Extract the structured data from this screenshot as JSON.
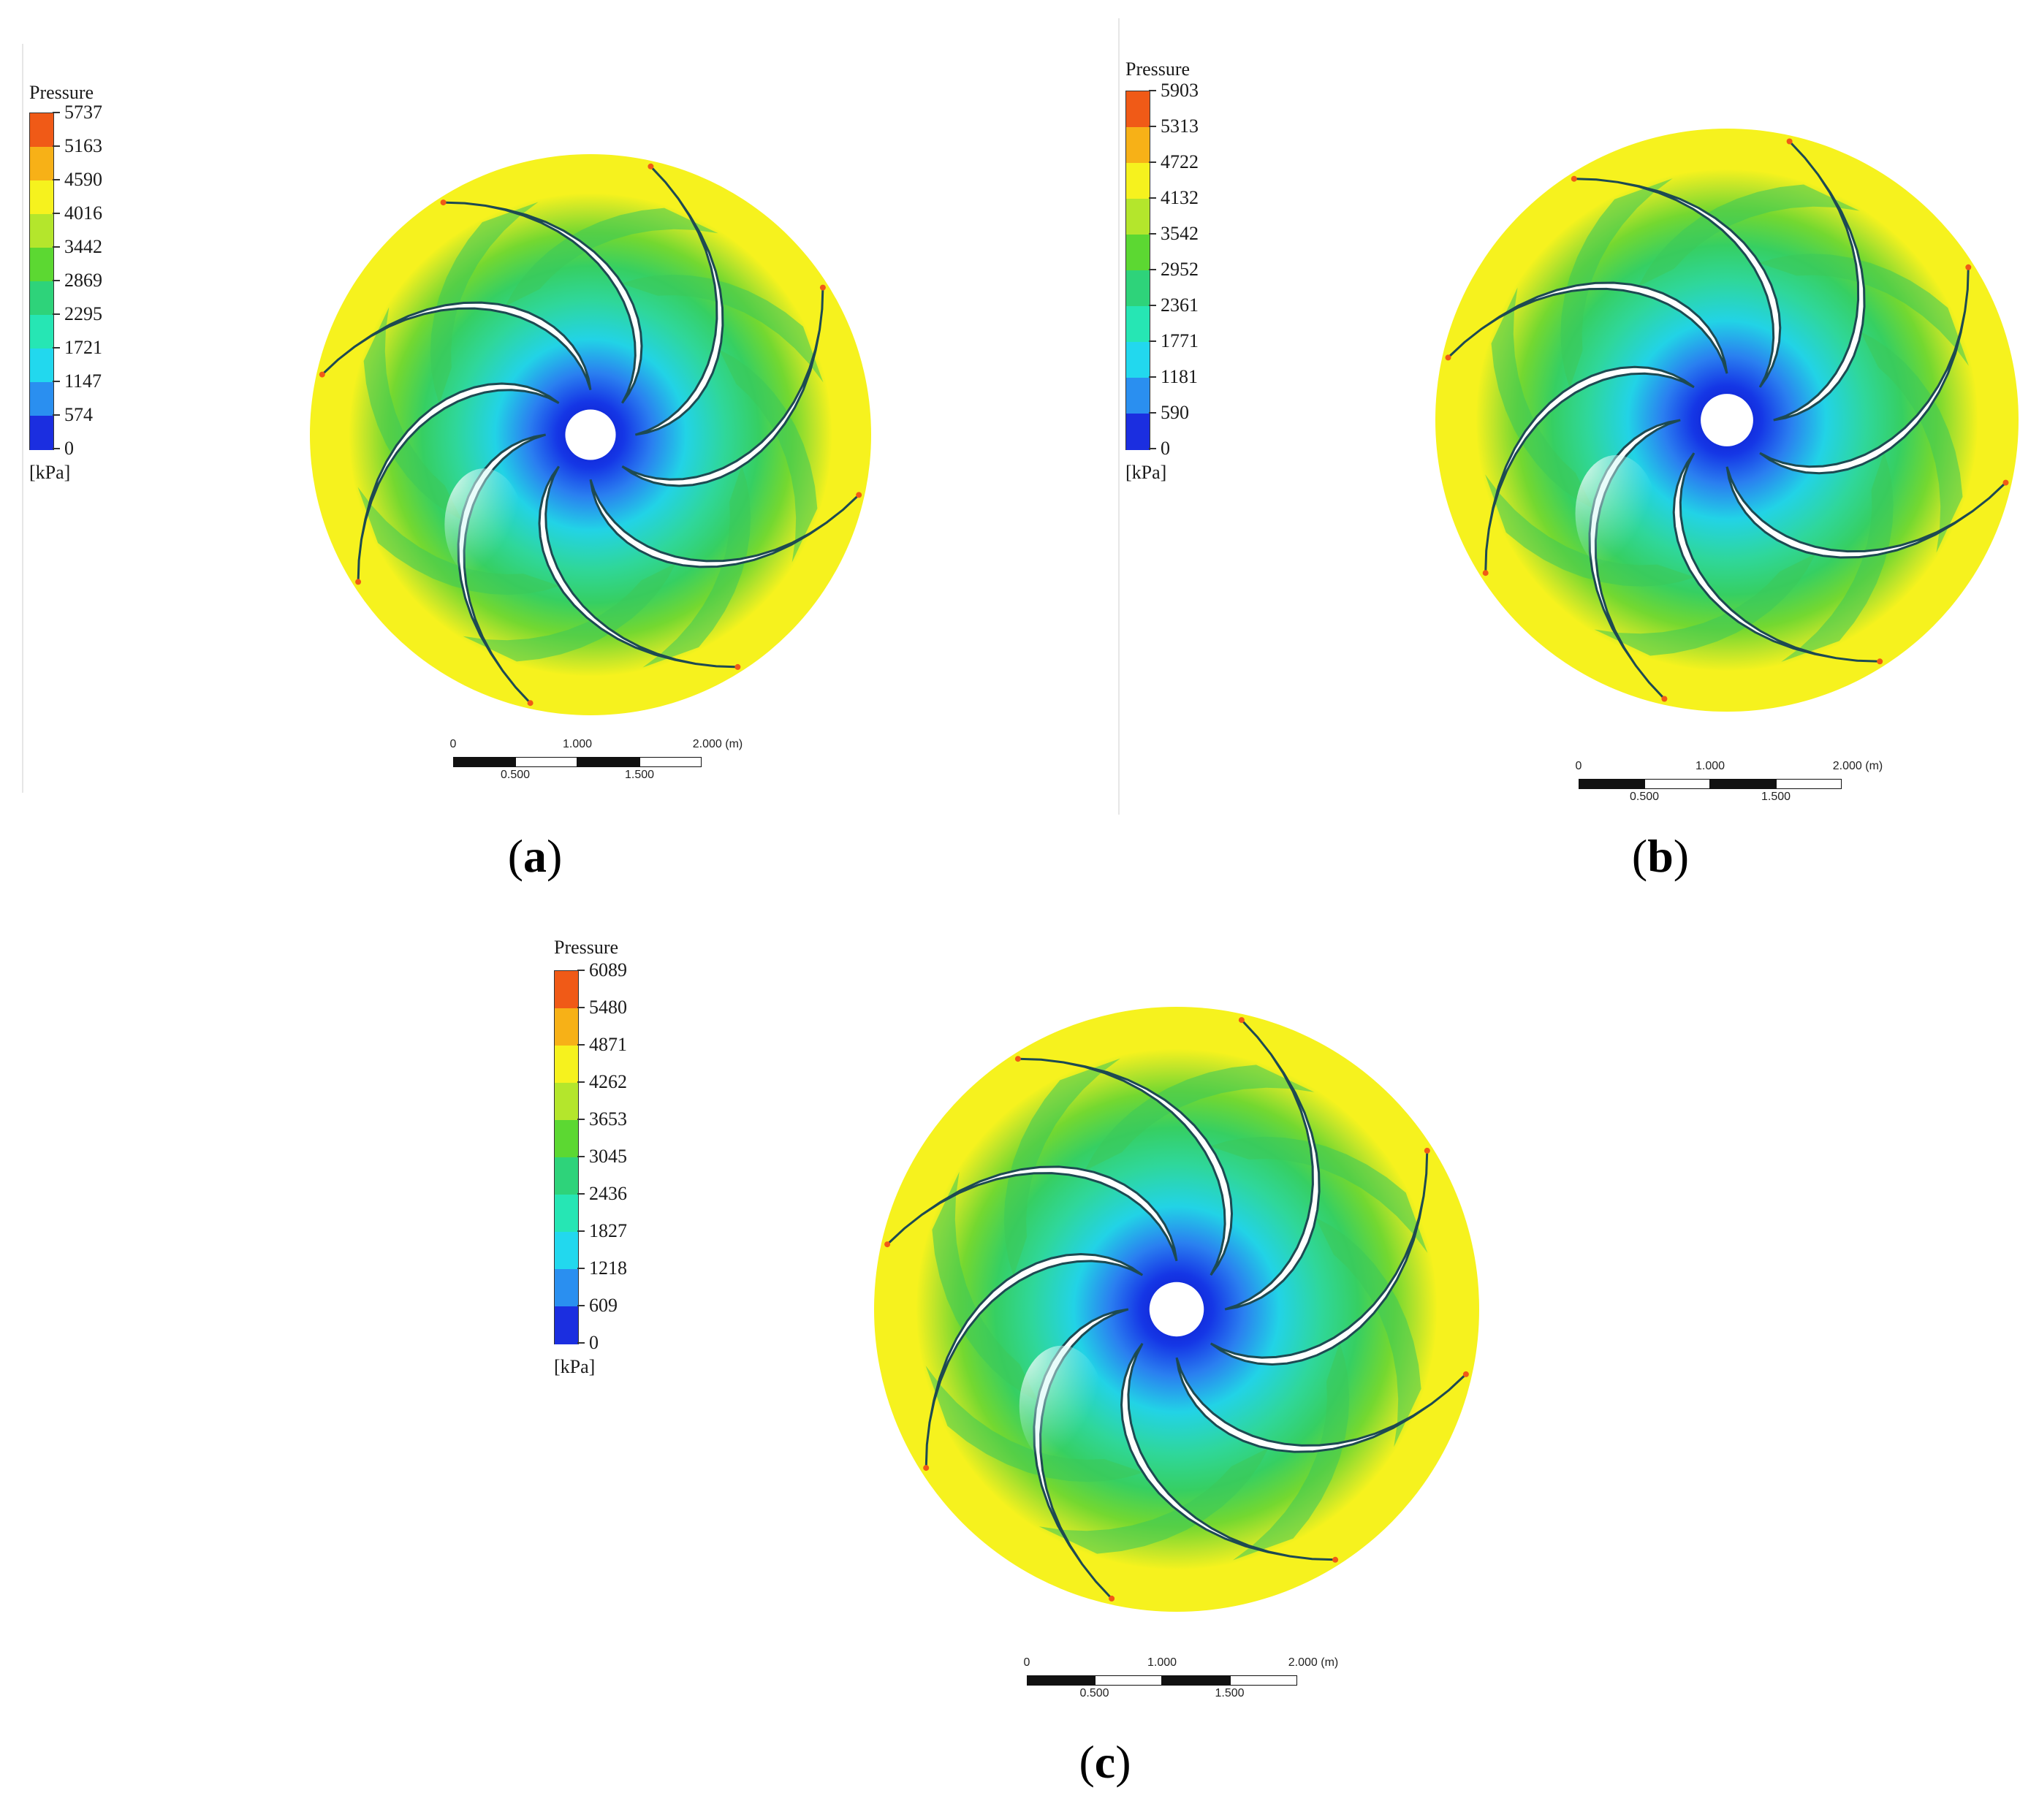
{
  "colormap": [
    "#1b2ee0",
    "#2a8ff0",
    "#22d8ee",
    "#26e6b4",
    "#2ed37a",
    "#5cd832",
    "#b4e62c",
    "#f6f21e",
    "#f7b117",
    "#f05a17"
  ],
  "panels": [
    {
      "id": "a",
      "caption_letter": "a",
      "legend": {
        "title": "Pressure",
        "ticks": [
          "5737",
          "5163",
          "4590",
          "4016",
          "3442",
          "2869",
          "2295",
          "1721",
          "1147",
          "574",
          "0"
        ],
        "unit": "[kPa]"
      },
      "scalebar": {
        "top_labels": [
          "0",
          "1.000",
          "2.000 (m)"
        ],
        "bottom_labels": [
          "0.500",
          "1.500"
        ]
      }
    },
    {
      "id": "b",
      "caption_letter": "b",
      "legend": {
        "title": "Pressure",
        "ticks": [
          "5903",
          "5313",
          "4722",
          "4132",
          "3542",
          "2952",
          "2361",
          "1771",
          "1181",
          "590",
          "0"
        ],
        "unit": "[kPa]"
      },
      "scalebar": {
        "top_labels": [
          "0",
          "1.000",
          "2.000 (m)"
        ],
        "bottom_labels": [
          "0.500",
          "1.500"
        ]
      }
    },
    {
      "id": "c",
      "caption_letter": "c",
      "legend": {
        "title": "Pressure",
        "ticks": [
          "6089",
          "5480",
          "4871",
          "4262",
          "3653",
          "3045",
          "2436",
          "1827",
          "1218",
          "609",
          "0"
        ],
        "unit": "[kPa]"
      },
      "scalebar": {
        "top_labels": [
          "0",
          "1.000",
          "2.000 (m)"
        ],
        "bottom_labels": [
          "0.500",
          "1.500"
        ]
      }
    }
  ],
  "captions": {
    "open": "(",
    "close": ")"
  }
}
